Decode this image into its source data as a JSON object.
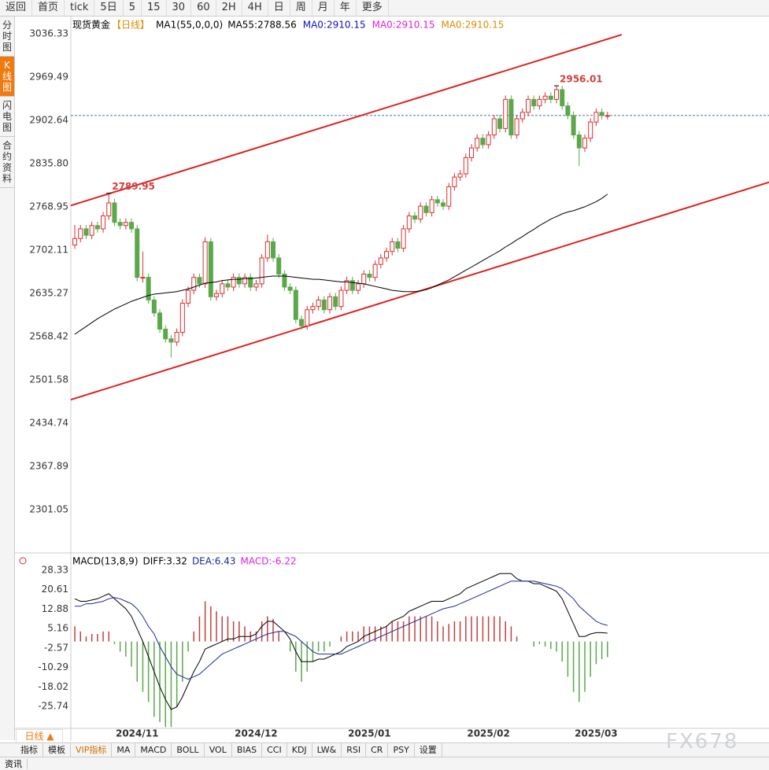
{
  "toolbar": {
    "items": [
      "返回",
      "首页",
      "tick",
      "5日",
      "5",
      "15",
      "30",
      "60",
      "2H",
      "4H",
      "日",
      "周",
      "月",
      "年",
      "更多"
    ]
  },
  "sidebar": {
    "tabs": [
      "分时图",
      "K线图",
      "闪电图",
      "合约资料"
    ]
  },
  "bottom_tabs": {
    "period": "日线 ▲",
    "items": [
      "指标",
      "模板",
      "VIP指标",
      "MA",
      "MACD",
      "BOLL",
      "VOL",
      "BIAS",
      "CCI",
      "KDJ",
      "LW&",
      "RSI",
      "CR",
      "PSY",
      "设置"
    ]
  },
  "footer": {
    "tab": "资讯"
  },
  "watermark": "FX678",
  "chart_data": [
    {
      "type": "candlestick",
      "title": "现货黄金",
      "subtitle": "【日线】",
      "indicator": "MA1(55,0,0,0)",
      "indicator_labels": [
        {
          "text": "MA0:2910.15",
          "color": "#1010c0"
        },
        {
          "text": "MA0:2910.15",
          "color": "#e020e0"
        },
        {
          "text": "MA0:2910.15",
          "color": "#e08a00"
        }
      ],
      "up_color": "#d83030",
      "down_color": "#5aa84a",
      "xlim": [
        -0.7,
        122.5
      ],
      "ylim": [
        2250,
        3052.1
      ],
      "yticks": [
        3036.33,
        2969.49,
        2902.64,
        {
          "value": 2835.8,
          "label": "2835.80"
        },
        2768.95,
        2702.11,
        2635.27,
        2568.42,
        2501.58,
        2434.74,
        2367.89,
        2301.05
      ],
      "xticks": [
        {
          "value": 11,
          "label": "2024/11"
        },
        {
          "value": 32,
          "label": "2024/12"
        },
        {
          "value": 52,
          "label": "2025/01"
        },
        {
          "value": 73,
          "label": "2025/02"
        },
        {
          "value": 92,
          "label": "2025/03"
        }
      ],
      "high_labels": [
        2789.95,
        2956.01
      ],
      "price_line": 2910.15,
      "trendlines": [
        {
          "from": [
            -0.7,
            2771
          ],
          "to": [
            96.5,
            3035
          ]
        },
        {
          "from": [
            -0.7,
            2471
          ],
          "to": [
            122.5,
            2807
          ]
        }
      ],
      "ohlc": [
        [
          2710,
          2741,
          2704,
          2720
        ],
        [
          2720,
          2741,
          2714,
          2735
        ],
        [
          2735,
          2741,
          2719,
          2725
        ],
        [
          2725,
          2746,
          2719,
          2740
        ],
        [
          2740,
          2746,
          2729,
          2735
        ],
        [
          2735,
          2761,
          2729,
          2755
        ],
        [
          2755,
          2789.95,
          2749,
          2775
        ],
        [
          2775,
          2781,
          2739,
          2745
        ],
        [
          2745,
          2751,
          2734,
          2740
        ],
        [
          2740,
          2751,
          2734,
          2745
        ],
        [
          2745,
          2751,
          2729,
          2735
        ],
        [
          2735,
          2741,
          2654,
          2660
        ],
        [
          2660,
          2700,
          2652,
          2660
        ],
        [
          2660,
          2666,
          2619,
          2625
        ],
        [
          2625,
          2631,
          2599,
          2605
        ],
        [
          2605,
          2611,
          2574,
          2580
        ],
        [
          2580,
          2586,
          2559,
          2565
        ],
        [
          2565,
          2571,
          2536,
          2560
        ],
        [
          2560,
          2581,
          2554,
          2575
        ],
        [
          2575,
          2626,
          2569,
          2620
        ],
        [
          2620,
          2646,
          2614,
          2640
        ],
        [
          2640,
          2666,
          2634,
          2660
        ],
        [
          2660,
          2666,
          2644,
          2650
        ],
        [
          2650,
          2722,
          2644,
          2715
        ],
        [
          2715,
          2721,
          2624,
          2630
        ],
        [
          2630,
          2641,
          2624,
          2635
        ],
        [
          2635,
          2656,
          2629,
          2650
        ],
        [
          2650,
          2656,
          2639,
          2645
        ],
        [
          2645,
          2666,
          2639,
          2660
        ],
        [
          2660,
          2666,
          2644,
          2650
        ],
        [
          2650,
          2666,
          2644,
          2660
        ],
        [
          2660,
          2666,
          2639,
          2645
        ],
        [
          2645,
          2656,
          2639,
          2650
        ],
        [
          2650,
          2696,
          2644,
          2690
        ],
        [
          2690,
          2726,
          2684,
          2715
        ],
        [
          2715,
          2721,
          2684,
          2690
        ],
        [
          2690,
          2696,
          2659,
          2665
        ],
        [
          2665,
          2671,
          2639,
          2645
        ],
        [
          2645,
          2651,
          2634,
          2640
        ],
        [
          2640,
          2646,
          2589,
          2595
        ],
        [
          2595,
          2601,
          2579,
          2585
        ],
        [
          2585,
          2616,
          2579,
          2610
        ],
        [
          2610,
          2621,
          2604,
          2615
        ],
        [
          2615,
          2631,
          2609,
          2625
        ],
        [
          2625,
          2631,
          2604,
          2610
        ],
        [
          2610,
          2636,
          2604,
          2630
        ],
        [
          2630,
          2636,
          2609,
          2615
        ],
        [
          2615,
          2646,
          2609,
          2640
        ],
        [
          2640,
          2661,
          2634,
          2655
        ],
        [
          2655,
          2661,
          2634,
          2640
        ],
        [
          2640,
          2656,
          2634,
          2650
        ],
        [
          2650,
          2671,
          2644,
          2665
        ],
        [
          2665,
          2671,
          2654,
          2660
        ],
        [
          2660,
          2686,
          2654,
          2680
        ],
        [
          2680,
          2696,
          2674,
          2690
        ],
        [
          2690,
          2706,
          2684,
          2700
        ],
        [
          2700,
          2721,
          2694,
          2715
        ],
        [
          2715,
          2721,
          2699,
          2705
        ],
        [
          2705,
          2741,
          2699,
          2735
        ],
        [
          2735,
          2761,
          2729,
          2755
        ],
        [
          2755,
          2761,
          2744,
          2750
        ],
        [
          2750,
          2776,
          2744,
          2770
        ],
        [
          2770,
          2776,
          2754,
          2760
        ],
        [
          2760,
          2786,
          2754,
          2780
        ],
        [
          2780,
          2786,
          2769,
          2775
        ],
        [
          2775,
          2781,
          2764,
          2770
        ],
        [
          2770,
          2806,
          2764,
          2800
        ],
        [
          2800,
          2821,
          2794,
          2815
        ],
        [
          2815,
          2826,
          2809,
          2820
        ],
        [
          2820,
          2851,
          2814,
          2845
        ],
        [
          2845,
          2866,
          2839,
          2860
        ],
        [
          2860,
          2881,
          2854,
          2875
        ],
        [
          2875,
          2881,
          2859,
          2865
        ],
        [
          2865,
          2886,
          2859,
          2880
        ],
        [
          2880,
          2911,
          2874,
          2905
        ],
        [
          2905,
          2911,
          2884,
          2890
        ],
        [
          2890,
          2941,
          2884,
          2935
        ],
        [
          2935,
          2941,
          2874,
          2880
        ],
        [
          2880,
          2911,
          2874,
          2905
        ],
        [
          2905,
          2921,
          2899,
          2915
        ],
        [
          2915,
          2941,
          2909,
          2935
        ],
        [
          2935,
          2941,
          2919,
          2925
        ],
        [
          2925,
          2941,
          2919,
          2935
        ],
        [
          2935,
          2946,
          2929,
          2940
        ],
        [
          2940,
          2946,
          2929,
          2935
        ],
        [
          2935,
          2956.01,
          2929,
          2950
        ],
        [
          2950,
          2956,
          2919,
          2925
        ],
        [
          2925,
          2931,
          2904,
          2910
        ],
        [
          2910,
          2916,
          2874,
          2880
        ],
        [
          2880,
          2886,
          2832,
          2860
        ],
        [
          2860,
          2881,
          2854,
          2875
        ],
        [
          2875,
          2906,
          2869,
          2900
        ],
        [
          2900,
          2921,
          2894,
          2915
        ],
        [
          2915,
          2921,
          2904,
          2910
        ],
        [
          2910,
          2916,
          2904,
          2910
        ]
      ],
      "series": [
        {
          "name": "MA55:2788.56",
          "color": "#000000",
          "values": [
            2572,
            2578,
            2584,
            2590,
            2596,
            2601,
            2606,
            2611,
            2615,
            2619,
            2623,
            2626,
            2629,
            2632,
            2634,
            2635,
            2636,
            2637,
            2638,
            2640,
            2642,
            2645,
            2648,
            2651,
            2652,
            2653,
            2655,
            2656,
            2657,
            2657,
            2658,
            2658,
            2659,
            2660,
            2661,
            2662,
            2662,
            2662,
            2661,
            2660,
            2659,
            2658,
            2657,
            2657,
            2656,
            2655,
            2654,
            2653,
            2653,
            2652,
            2651,
            2650,
            2648,
            2646,
            2644,
            2642,
            2640,
            2639,
            2638,
            2638,
            2638,
            2639,
            2641,
            2644,
            2648,
            2652,
            2656,
            2661,
            2666,
            2671,
            2676,
            2681,
            2686,
            2691,
            2696,
            2701,
            2707,
            2712,
            2718,
            2723,
            2729,
            2734,
            2740,
            2745,
            2750,
            2754,
            2758,
            2761,
            2763,
            2766,
            2769,
            2773,
            2777,
            2782,
            2788.56
          ]
        }
      ]
    },
    {
      "type": "macd",
      "title": "MACD(13,8,9)",
      "xlim": [
        -0.7,
        122.5
      ],
      "ylim": [
        -34.2,
        32.4
      ],
      "yticks": [
        28.33,
        20.61,
        12.88,
        5.16,
        -2.57,
        -10.29,
        -18.02,
        -25.74
      ],
      "series": [
        {
          "name": "DIFF:3.32",
          "color": "#000000",
          "values": [
            17,
            16,
            16,
            16.5,
            17,
            18,
            19,
            17,
            15,
            13,
            10,
            5,
            0,
            -6,
            -12,
            -18,
            -23,
            -27,
            -26,
            -22,
            -17,
            -12,
            -8,
            -3,
            -2,
            -1,
            0,
            1,
            1,
            2,
            2,
            2,
            3,
            6,
            8,
            8,
            6,
            4,
            1,
            -4,
            -8,
            -8,
            -8,
            -7,
            -7,
            -6,
            -5,
            -4,
            -2,
            -1,
            0,
            2,
            3,
            4,
            5,
            6,
            8,
            9,
            10,
            12,
            13,
            14,
            15,
            16,
            16,
            16,
            17,
            18,
            19,
            21,
            22,
            23,
            24,
            25,
            26,
            27,
            27,
            27,
            25,
            24,
            24,
            23,
            23,
            22,
            21,
            20,
            17,
            12,
            7,
            2,
            2,
            3,
            3.5,
            3.5,
            3.32
          ]
        },
        {
          "name": "DEA:6.43",
          "color": "#1a2a9a",
          "values": [
            14,
            14,
            15,
            15,
            15.5,
            16,
            17,
            17.5,
            17,
            16,
            15,
            13,
            10,
            6,
            3,
            -2,
            -6,
            -10,
            -13,
            -14,
            -15,
            -14,
            -13,
            -11,
            -9,
            -7,
            -5,
            -4,
            -3,
            -2,
            -1,
            0,
            1,
            2,
            3,
            3.5,
            4,
            4,
            3,
            2,
            0,
            -2,
            -4,
            -5,
            -5,
            -5,
            -5,
            -5,
            -4,
            -3,
            -2,
            -1,
            0,
            1,
            2,
            3,
            4,
            5,
            6,
            7,
            8,
            9,
            10,
            11,
            12,
            13,
            13.5,
            14,
            15,
            16,
            17,
            18,
            19,
            20,
            21,
            22,
            23,
            24,
            24,
            24,
            24,
            24,
            23.5,
            23,
            22.5,
            22,
            21,
            19,
            17,
            14,
            12,
            10,
            8,
            7,
            6.43
          ]
        }
      ],
      "histogram": {
        "name": "MACD:-6.22",
        "label_color": "#e020e0",
        "up_color": "#c04040",
        "down_color": "#5aa84a",
        "values": [
          6,
          4,
          2,
          3,
          3,
          4,
          4,
          -1,
          -4,
          -6,
          -10,
          -16,
          -20,
          -24,
          -30,
          -32,
          -34,
          -34,
          -26,
          -16,
          -4,
          4,
          10,
          16,
          14,
          12,
          10,
          10,
          8,
          8,
          6,
          4,
          4,
          8,
          10,
          9,
          4,
          0,
          -4,
          -12,
          -16,
          -12,
          -8,
          -4,
          -4,
          -2,
          0,
          2,
          4,
          4,
          4,
          6,
          6,
          6,
          6,
          6,
          8,
          8,
          8,
          10,
          10,
          10,
          10,
          10,
          8,
          6,
          7,
          8,
          8,
          10,
          10,
          10,
          10,
          10,
          10,
          10,
          8,
          6,
          2,
          0,
          0,
          -2,
          -1,
          -2,
          -3,
          -4,
          -8,
          -14,
          -20,
          -24,
          -20,
          -14,
          -9,
          -7,
          -6.22
        ]
      }
    }
  ]
}
